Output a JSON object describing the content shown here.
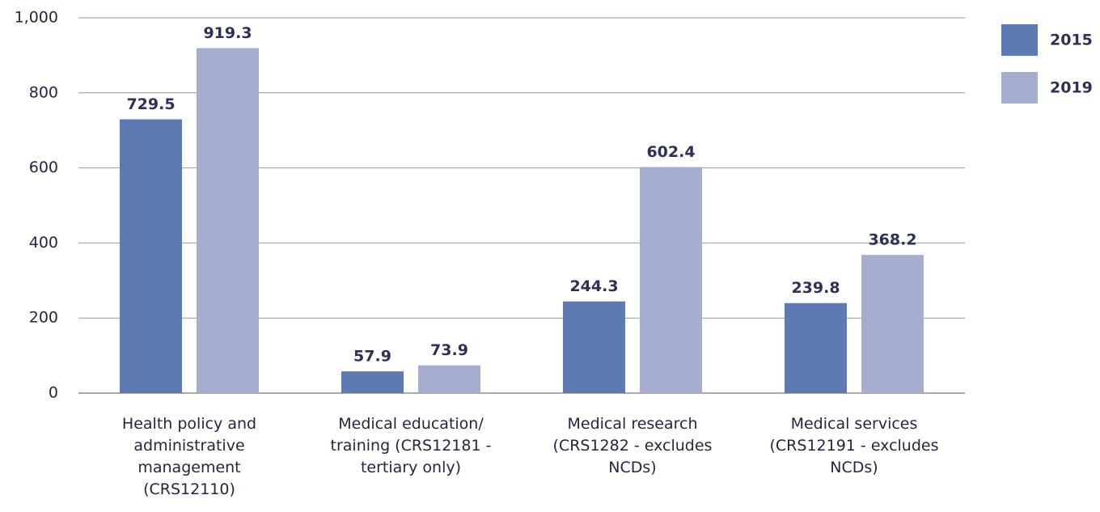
{
  "chart_data": {
    "type": "bar",
    "categories": [
      "Health policy and administrative management (CRS12110)",
      "Medical education/ training (CRS12181 - tertiary only)",
      "Medical research (CRS1282 - excludes NCDs)",
      "Medical services (CRS12191 - excludes NCDs)"
    ],
    "series": [
      {
        "name": "2015",
        "color": "#5f7ab3",
        "values": [
          729.5,
          57.9,
          244.3,
          239.8
        ]
      },
      {
        "name": "2019",
        "color": "#a5add0",
        "values": [
          919.3,
          73.9,
          602.4,
          368.2
        ]
      }
    ],
    "ylim": [
      0,
      1000
    ],
    "yticks": [
      0,
      200,
      400,
      600,
      800,
      {
        "value": 1000,
        "label": "1,000"
      }
    ],
    "grid": true,
    "legend": "right"
  }
}
